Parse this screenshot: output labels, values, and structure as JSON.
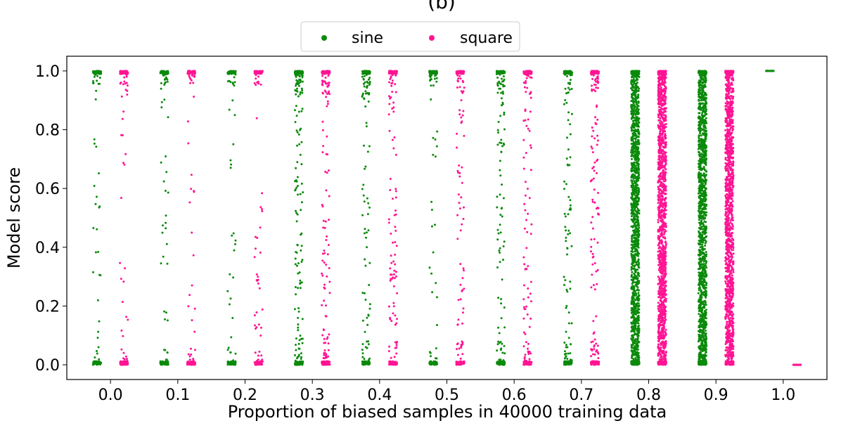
{
  "chart_data": {
    "type": "scatter",
    "subtype": "strip",
    "title": "(b)",
    "xlabel": "Proportion of biased samples in 40000 training data",
    "ylabel": "Model score",
    "xlim": [
      -0.065,
      1.065
    ],
    "ylim": [
      -0.05,
      1.05
    ],
    "x_ticks": [
      0.0,
      0.1,
      0.2,
      0.3,
      0.4,
      0.5,
      0.6,
      0.7,
      0.8,
      0.9,
      1.0
    ],
    "x_tick_labels": [
      "0.0",
      "0.1",
      "0.2",
      "0.3",
      "0.4",
      "0.5",
      "0.6",
      "0.7",
      "0.8",
      "0.9",
      "1.0"
    ],
    "y_ticks": [
      0.0,
      0.2,
      0.4,
      0.6,
      0.8,
      1.0
    ],
    "y_tick_labels": [
      "0.0",
      "0.2",
      "0.4",
      "0.6",
      "0.8",
      "1.0"
    ],
    "grid": false,
    "legend_position": "top-center",
    "series": [
      {
        "name": "sine",
        "color": "#0b8a0b",
        "x_offset": -0.02,
        "jitter_half_width": 0.006,
        "groups": [
          {
            "proportion": 0.0,
            "points_approx": 170,
            "spread": "sparse"
          },
          {
            "proportion": 0.1,
            "points_approx": 170,
            "spread": "sparse"
          },
          {
            "proportion": 0.2,
            "points_approx": 160,
            "spread": "sparse"
          },
          {
            "proportion": 0.3,
            "points_approx": 300,
            "spread": "moderate"
          },
          {
            "proportion": 0.4,
            "points_approx": 230,
            "spread": "moderate"
          },
          {
            "proportion": 0.5,
            "points_approx": 140,
            "spread": "sparse"
          },
          {
            "proportion": 0.6,
            "points_approx": 240,
            "spread": "moderate"
          },
          {
            "proportion": 0.7,
            "points_approx": 260,
            "spread": "moderate"
          },
          {
            "proportion": 0.8,
            "points_approx": 1500,
            "spread": "dense"
          },
          {
            "proportion": 0.9,
            "points_approx": 1500,
            "spread": "dense"
          },
          {
            "proportion": 1.0,
            "points_approx": 30,
            "spread": "all-at-1.0"
          }
        ]
      },
      {
        "name": "square",
        "color": "#ff1493",
        "x_offset": 0.02,
        "jitter_half_width": 0.006,
        "groups": [
          {
            "proportion": 0.0,
            "points_approx": 170,
            "spread": "sparse"
          },
          {
            "proportion": 0.1,
            "points_approx": 170,
            "spread": "sparse"
          },
          {
            "proportion": 0.2,
            "points_approx": 160,
            "spread": "sparse"
          },
          {
            "proportion": 0.3,
            "points_approx": 280,
            "spread": "moderate"
          },
          {
            "proportion": 0.4,
            "points_approx": 230,
            "spread": "moderate"
          },
          {
            "proportion": 0.5,
            "points_approx": 200,
            "spread": "moderate"
          },
          {
            "proportion": 0.6,
            "points_approx": 230,
            "spread": "moderate"
          },
          {
            "proportion": 0.7,
            "points_approx": 300,
            "spread": "moderate"
          },
          {
            "proportion": 0.8,
            "points_approx": 1500,
            "spread": "dense"
          },
          {
            "proportion": 0.9,
            "points_approx": 1500,
            "spread": "dense"
          },
          {
            "proportion": 1.0,
            "points_approx": 30,
            "spread": "all-at-0.0"
          }
        ]
      }
    ]
  }
}
